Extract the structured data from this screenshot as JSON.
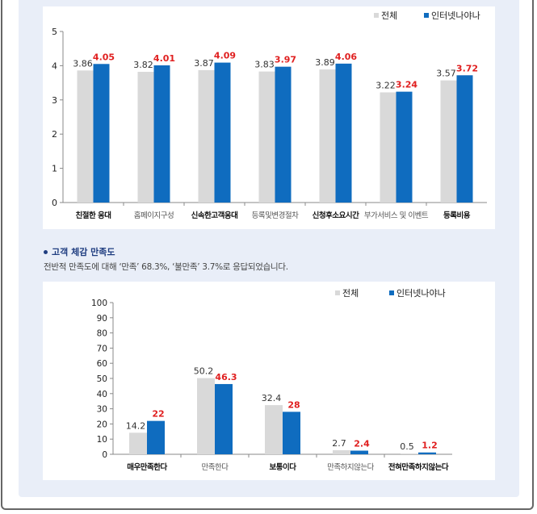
{
  "section2": {
    "title": "고객 체감 만족도",
    "description": "전반적 만족도에 대해 ‘만족’ 68.3%, ‘불만족’ 3.7%로 응답되었습니다."
  },
  "chart_data": [
    {
      "type": "bar",
      "legend_position": "top-right",
      "categories": [
        "친절한 응대",
        "홈페이지구성",
        "신속한고객응대",
        "등록및변경절차",
        "신청후소요시간",
        "부가서비스 및 이벤트",
        "등록비용"
      ],
      "category_bold": [
        true,
        false,
        true,
        false,
        true,
        false,
        true
      ],
      "ylim": [
        0,
        5
      ],
      "yticks": [
        "0",
        "1",
        "2",
        "3",
        "4",
        "5"
      ],
      "series": [
        {
          "name": "전체",
          "color": "#d9d9d9",
          "values": [
            3.86,
            3.82,
            3.87,
            3.83,
            3.89,
            3.22,
            3.57
          ],
          "labels": [
            "3.86",
            "3.82",
            "3.87",
            "3.83",
            "3.89",
            "3.22",
            "3.57"
          ],
          "label_color": "#333333"
        },
        {
          "name": "인터넷나야나",
          "color": "#0f6cbf",
          "values": [
            4.05,
            4.01,
            4.09,
            3.97,
            4.06,
            3.24,
            3.72
          ],
          "labels": [
            "4.05",
            "4.01",
            "4.09",
            "3.97",
            "4.06",
            "3.24",
            "3.72"
          ],
          "label_color": "#e02020"
        }
      ]
    },
    {
      "type": "bar",
      "legend_position": "top-right",
      "categories": [
        "매우만족한다",
        "만족한다",
        "보통이다",
        "만족하지않는다",
        "전혀만족하지않는다"
      ],
      "category_bold": [
        true,
        false,
        true,
        false,
        true
      ],
      "ylim": [
        0,
        100
      ],
      "yticks": [
        "0",
        "10",
        "20",
        "30",
        "40",
        "50",
        "60",
        "70",
        "80",
        "90",
        "100"
      ],
      "series": [
        {
          "name": "전체",
          "color": "#d9d9d9",
          "values": [
            14.2,
            50.2,
            32.4,
            2.7,
            0.5
          ],
          "labels": [
            "14.2",
            "50.2",
            "32.4",
            "2.7",
            "0.5"
          ],
          "label_color": "#333333"
        },
        {
          "name": "인터넷나야나",
          "color": "#0f6cbf",
          "values": [
            22,
            46.3,
            28,
            2.4,
            1.2
          ],
          "labels": [
            "22",
            "46.3",
            "28",
            "2.4",
            "1.2"
          ],
          "label_color": "#e02020"
        }
      ]
    }
  ]
}
